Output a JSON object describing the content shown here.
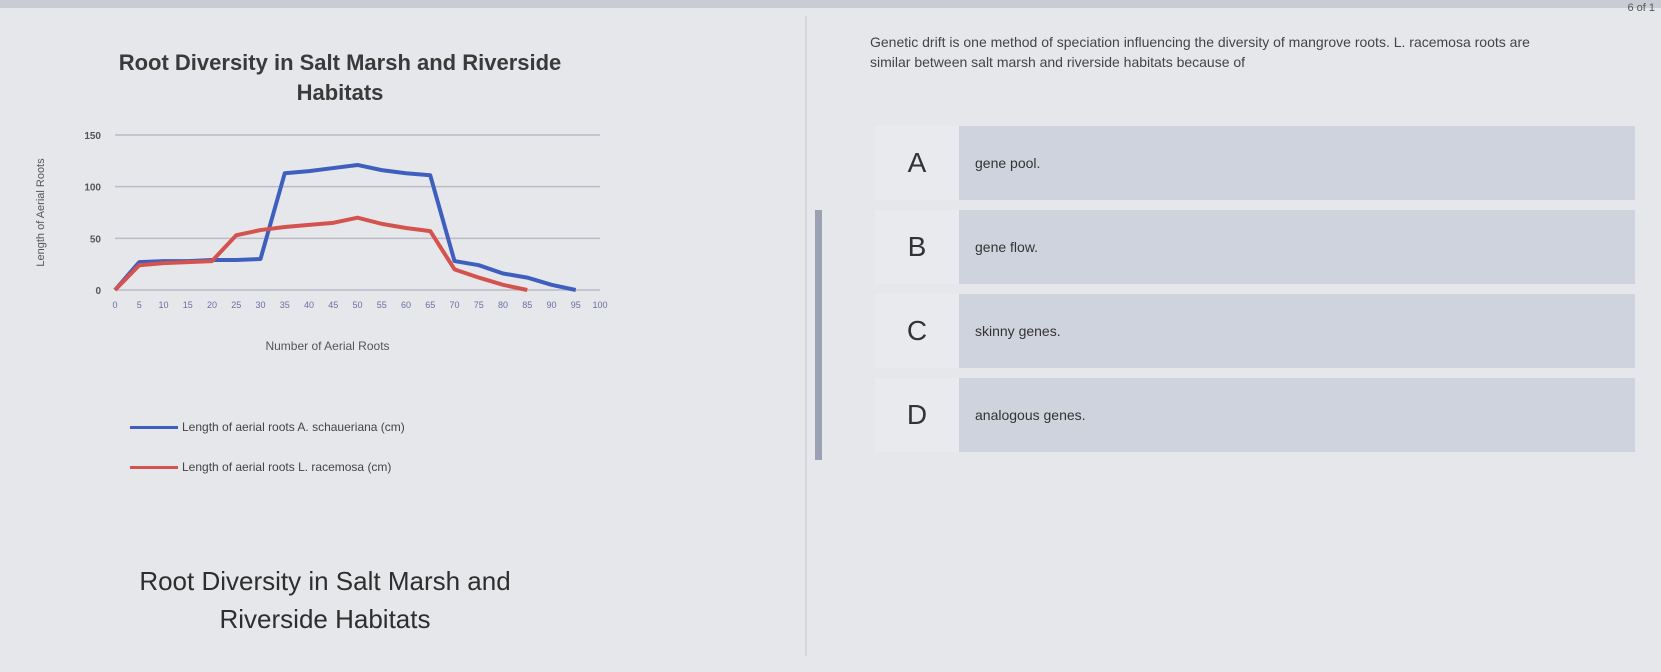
{
  "counter": "6 of 1",
  "question": "Genetic drift is one method of speciation influencing the diversity of mangrove roots. L. racemosa roots are similar between salt marsh and riverside habitats because of",
  "options": [
    {
      "letter": "A",
      "text": "gene pool."
    },
    {
      "letter": "B",
      "text": "gene flow."
    },
    {
      "letter": "C",
      "text": "skinny genes."
    },
    {
      "letter": "D",
      "text": "analogous genes."
    }
  ],
  "caption": "Root Diversity in Salt Marsh and Riverside Habitats",
  "chart_data": {
    "type": "line",
    "title": "Root Diversity in Salt Marsh and Riverside Habitats",
    "xlabel": "Number of Aerial Roots",
    "ylabel": "Length of Aerial Roots",
    "ylim": [
      0,
      150
    ],
    "yticks": [
      0,
      50,
      100,
      150
    ],
    "x": [
      0,
      5,
      10,
      15,
      20,
      25,
      30,
      35,
      40,
      45,
      50,
      55,
      60,
      65,
      70,
      75,
      80,
      85,
      90,
      95,
      100
    ],
    "grid": true,
    "legend_placement": "bottom",
    "series": [
      {
        "name": "Length of aerial roots A. schaueriana (cm)",
        "color": "#3f5fbf",
        "values": [
          0,
          27,
          28,
          28,
          29,
          29,
          30,
          113,
          115,
          118,
          121,
          116,
          113,
          111,
          28,
          24,
          16,
          12,
          5,
          0,
          null
        ]
      },
      {
        "name": "Length of aerial roots L. racemosa (cm)",
        "color": "#d4534f",
        "values": [
          0,
          24,
          26,
          27,
          28,
          53,
          58,
          61,
          63,
          65,
          70,
          64,
          60,
          57,
          20,
          12,
          5,
          0,
          null,
          null,
          null
        ]
      }
    ]
  }
}
